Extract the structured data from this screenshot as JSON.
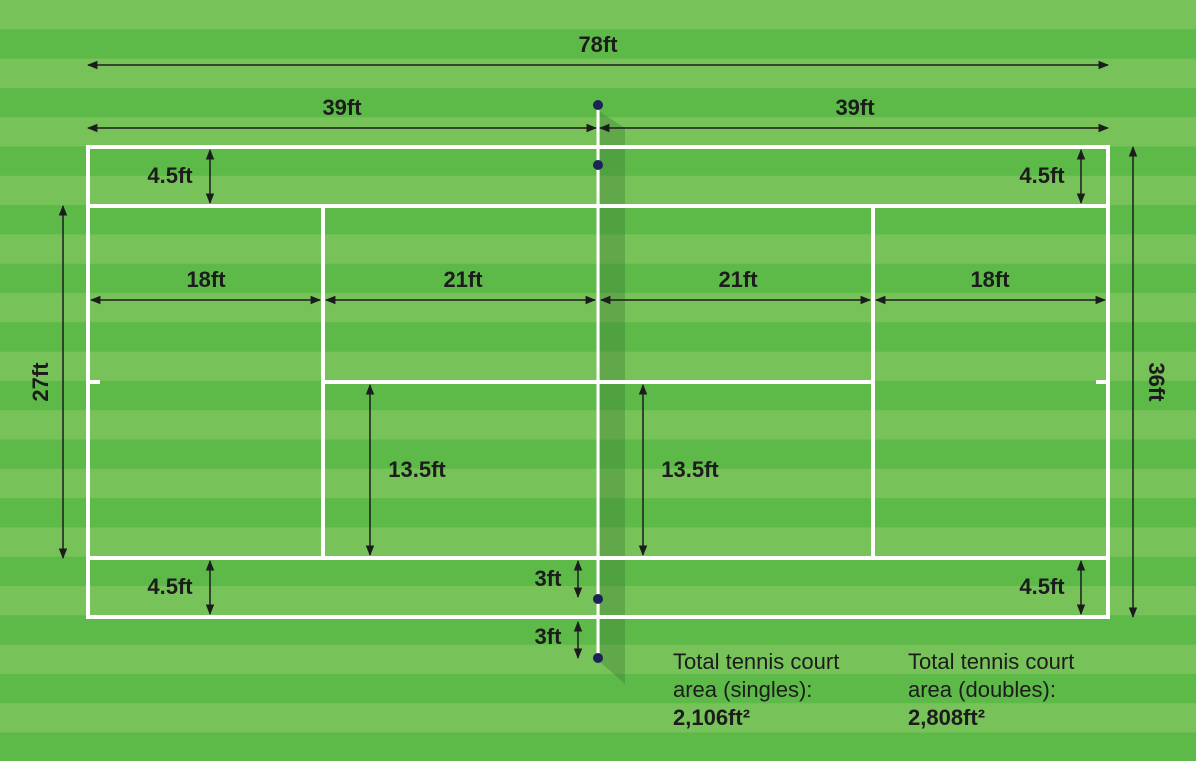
{
  "dimensions": {
    "length": "78ft",
    "half_lengths": [
      "39ft",
      "39ft"
    ],
    "alley_widths": [
      "4.5ft",
      "4.5ft",
      "4.5ft",
      "4.5ft"
    ],
    "backcourt_lengths": [
      "18ft",
      "18ft"
    ],
    "service_lengths": [
      "21ft",
      "21ft"
    ],
    "singles_width": "27ft",
    "doubles_width": "36ft",
    "service_box_widths": [
      "13.5ft",
      "13.5ft"
    ],
    "net_heights": [
      "3ft",
      "3ft"
    ]
  },
  "areas": [
    {
      "caption_lines": [
        "Total tennis court",
        "area (singles):"
      ],
      "value": "2,106ft²"
    },
    {
      "caption_lines": [
        "Total tennis court",
        "area (doubles):"
      ],
      "value": "2,808ft²"
    }
  ]
}
